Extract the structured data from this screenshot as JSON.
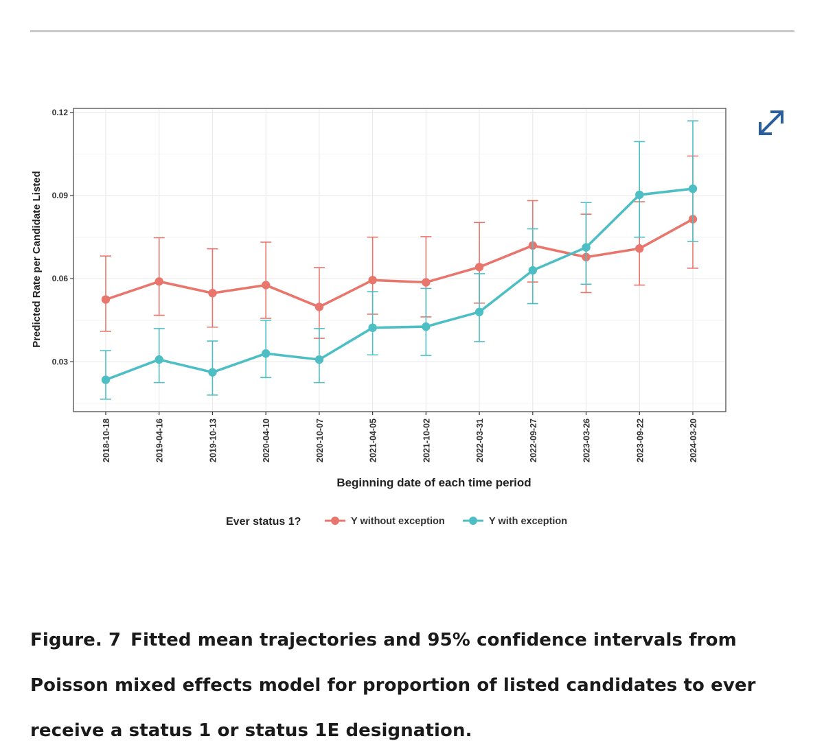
{
  "chart_data": {
    "type": "line",
    "title": "",
    "xlabel": "Beginning date of each time period",
    "ylabel": "Predicted Rate per Candidate Listed",
    "ylim": [
      0.012,
      0.1215
    ],
    "yticks": [
      0.03,
      0.06,
      0.09,
      0.12
    ],
    "ytick_labels": [
      "0.03",
      "0.06",
      "0.09",
      "0.12"
    ],
    "grid": true,
    "legend_title": "Ever status 1?",
    "legend_position": "bottom",
    "categories": [
      "2018-10-18",
      "2019-04-16",
      "2019-10-13",
      "2020-04-10",
      "2020-10-07",
      "2021-04-05",
      "2021-10-02",
      "2022-03-31",
      "2022-09-27",
      "2023-03-26",
      "2023-09-22",
      "2024-03-20"
    ],
    "series": [
      {
        "name": "Y without exception",
        "color": "#e8766c",
        "values": [
          0.0525,
          0.059,
          0.0548,
          0.0577,
          0.0498,
          0.0595,
          0.0587,
          0.0642,
          0.072,
          0.0678,
          0.0709,
          0.0815
        ],
        "lower": [
          0.041,
          0.0468,
          0.0425,
          0.0457,
          0.0385,
          0.0472,
          0.0462,
          0.0512,
          0.0588,
          0.055,
          0.0577,
          0.0638
        ],
        "upper": [
          0.0682,
          0.0748,
          0.0708,
          0.0732,
          0.064,
          0.075,
          0.0752,
          0.0803,
          0.0882,
          0.0833,
          0.0878,
          0.1043
        ]
      },
      {
        "name": "Y with exception",
        "color": "#4dbfc4",
        "values": [
          0.0235,
          0.0308,
          0.0262,
          0.033,
          0.0308,
          0.0423,
          0.0427,
          0.048,
          0.063,
          0.0713,
          0.0903,
          0.0925
        ],
        "lower": [
          0.0165,
          0.0225,
          0.018,
          0.0243,
          0.0225,
          0.0325,
          0.0323,
          0.0373,
          0.051,
          0.058,
          0.075,
          0.0735
        ],
        "upper": [
          0.034,
          0.042,
          0.0375,
          0.045,
          0.042,
          0.0553,
          0.0565,
          0.0618,
          0.078,
          0.0875,
          0.1095,
          0.117
        ]
      }
    ]
  },
  "caption": {
    "label": "Figure. 7",
    "text": "Fitted mean trajectories and 95% confidence intervals from Poisson mixed effects model for proportion of listed candidates to ever receive a status 1 or status 1E designation."
  },
  "icons": {
    "expand": "expand-arrows-icon"
  },
  "colors": {
    "accent": "#2a5d9e",
    "frame": "#555555",
    "grid": "#ebebeb"
  }
}
